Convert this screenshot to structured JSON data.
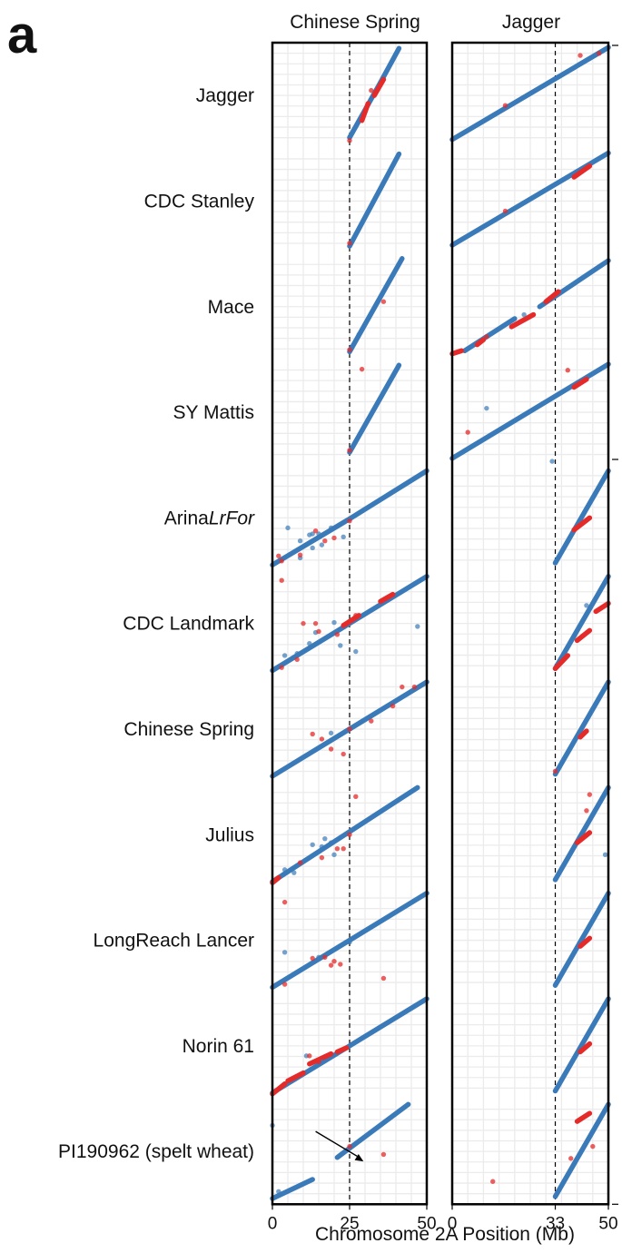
{
  "figure": {
    "panel_label": "a",
    "x_axis_title": "Chromosome 2A Position (Mb)"
  },
  "colors": {
    "blue": "#3a7ab8",
    "red": "#e52a2a",
    "grid": "#ebebeb",
    "frame": "#000000"
  },
  "chart_data": {
    "type": "scatter",
    "title": "",
    "xlabel": "Chromosome 2A Position (Mb)",
    "ylabel": "",
    "references": [
      {
        "name": "Chinese Spring",
        "xlim": [
          0,
          50
        ],
        "ticks": [
          0,
          25,
          50
        ],
        "dashed_line": 25
      },
      {
        "name": "Jagger",
        "xlim": [
          0,
          50
        ],
        "ticks": [
          0,
          33,
          50
        ],
        "dashed_line": 33
      }
    ],
    "rows": [
      {
        "name": "Jagger",
        "name_plain": "Jagger",
        "name_italic": "",
        "panels": [
          {
            "segments": [
              [
                25,
                0.08,
                35,
                0.63
              ],
              [
                35,
                0.63,
                41,
                0.97
              ]
            ],
            "red_segments": [
              [
                29,
                0.25,
                31,
                0.42
              ],
              [
                33,
                0.5,
                36,
                0.66
              ]
            ],
            "blue_points": [],
            "red_points": [
              [
                25,
                0.05
              ],
              [
                32,
                0.55
              ]
            ]
          },
          {
            "segments": [
              [
                0,
                0.06,
                50,
                0.98
              ]
            ],
            "red_segments": [],
            "blue_points": [],
            "red_points": [
              [
                17,
                0.4
              ],
              [
                41,
                0.9
              ],
              [
                47,
                0.92
              ]
            ]
          }
        ]
      },
      {
        "name": "CDC Stanley",
        "name_plain": "CDC Stanley",
        "name_italic": "",
        "panels": [
          {
            "segments": [
              [
                25,
                0.05,
                41,
                0.97
              ]
            ],
            "red_segments": [],
            "blue_points": [],
            "red_points": [
              [
                25,
                0.08
              ]
            ]
          },
          {
            "segments": [
              [
                0,
                0.06,
                50,
                0.98
              ]
            ],
            "red_segments": [
              [
                39,
                0.74,
                44,
                0.85
              ]
            ],
            "blue_points": [],
            "red_points": [
              [
                17,
                0.4
              ]
            ]
          }
        ]
      },
      {
        "name": "Mace",
        "name_plain": "Mace",
        "name_italic": "",
        "panels": [
          {
            "segments": [
              [
                25,
                0.05,
                42,
                0.98
              ]
            ],
            "red_segments": [],
            "blue_points": [
              [
                28,
                0.22
              ]
            ],
            "red_points": [
              [
                25,
                0.07
              ],
              [
                36,
                0.55
              ]
            ]
          },
          {
            "segments": [
              [
                4,
                0.06,
                20,
                0.38
              ],
              [
                28,
                0.5,
                50,
                0.96
              ]
            ],
            "red_segments": [
              [
                0,
                0.03,
                3,
                0.06
              ],
              [
                8,
                0.12,
                10,
                0.17
              ],
              [
                19,
                0.3,
                26,
                0.42
              ],
              [
                30,
                0.55,
                34,
                0.65
              ]
            ],
            "blue_points": [
              [
                23,
                0.42
              ]
            ],
            "red_points": [
              [
                11,
                0.2
              ]
            ]
          }
        ]
      },
      {
        "name": "SY Mattis",
        "name_plain": "SY Mattis",
        "name_italic": "",
        "panels": [
          {
            "segments": [
              [
                25,
                0.1,
                41,
                0.97
              ]
            ],
            "red_segments": [],
            "blue_points": [],
            "red_points": [
              [
                25,
                0.12
              ],
              [
                29,
                0.93
              ]
            ]
          },
          {
            "segments": [
              [
                0,
                0.04,
                50,
                0.98
              ]
            ],
            "red_segments": [
              [
                39,
                0.75,
                43,
                0.83
              ]
            ],
            "blue_points": [
              [
                11,
                0.54
              ],
              [
                32,
                0.01
              ]
            ],
            "red_points": [
              [
                37,
                0.92
              ],
              [
                5,
                0.3
              ]
            ]
          }
        ]
      },
      {
        "name": "ArinaLrFor",
        "name_plain": "Arina",
        "name_italic": "LrFor",
        "panels": [
          {
            "segments": [
              [
                0,
                0.03,
                25,
                0.49
              ],
              [
                25,
                0.49,
                50,
                0.97
              ]
            ],
            "red_segments": [],
            "blue_points": [
              [
                5,
                0.4
              ],
              [
                9,
                0.27
              ],
              [
                12,
                0.33
              ],
              [
                13,
                0.34
              ],
              [
                15,
                0.34
              ],
              [
                16,
                0.23
              ],
              [
                19,
                0.4
              ],
              [
                23,
                0.31
              ],
              [
                13,
                0.2
              ],
              [
                9,
                0.1
              ]
            ],
            "red_points": [
              [
                3,
                0.07
              ],
              [
                9,
                0.13
              ],
              [
                17,
                0.27
              ],
              [
                14,
                0.37
              ],
              [
                20,
                0.3
              ],
              [
                25,
                0.47
              ],
              [
                2,
                0.12
              ]
            ]
          },
          {
            "segments": [
              [
                33,
                0.05,
                50,
                0.97
              ]
            ],
            "red_segments": [
              [
                39,
                0.38,
                44,
                0.5
              ]
            ],
            "blue_points": [],
            "red_points": []
          }
        ]
      },
      {
        "name": "CDC Landmark",
        "name_plain": "CDC Landmark",
        "name_italic": "",
        "panels": [
          {
            "segments": [
              [
                0,
                0.03,
                50,
                0.97
              ]
            ],
            "red_segments": [
              [
                23,
                0.48,
                28,
                0.58
              ],
              [
                35,
                0.72,
                39,
                0.79
              ]
            ],
            "blue_points": [
              [
                4,
                0.18
              ],
              [
                8,
                0.2
              ],
              [
                12,
                0.3
              ],
              [
                14,
                0.41
              ],
              [
                20,
                0.51
              ],
              [
                22,
                0.28
              ],
              [
                47,
                0.47
              ],
              [
                27,
                0.22
              ]
            ],
            "red_points": [
              [
                3,
                0.93
              ],
              [
                10,
                0.5
              ],
              [
                14,
                0.5
              ],
              [
                15,
                0.42
              ],
              [
                21,
                0.39
              ],
              [
                3,
                0.06
              ],
              [
                8,
                0.14
              ],
              [
                27,
                0.58
              ]
            ]
          },
          {
            "segments": [
              [
                33,
                0.05,
                50,
                0.97
              ]
            ],
            "red_segments": [
              [
                33,
                0.05,
                37,
                0.18
              ],
              [
                40,
                0.33,
                44,
                0.43
              ],
              [
                46,
                0.62,
                50,
                0.7
              ]
            ],
            "blue_points": [
              [
                43,
                0.68
              ]
            ],
            "red_points": []
          }
        ]
      },
      {
        "name": "Chinese Spring",
        "name_plain": "Chinese Spring",
        "name_italic": "",
        "panels": [
          {
            "segments": [
              [
                0,
                0.03,
                50,
                0.97
              ]
            ],
            "red_segments": [],
            "blue_points": [
              [
                19,
                0.46
              ]
            ],
            "red_points": [
              [
                13,
                0.45
              ],
              [
                16,
                0.4
              ],
              [
                19,
                0.3
              ],
              [
                23,
                0.25
              ],
              [
                25,
                0.5
              ],
              [
                32,
                0.58
              ],
              [
                39,
                0.73
              ],
              [
                42,
                0.92
              ],
              [
                46,
                0.92
              ]
            ]
          },
          {
            "segments": [
              [
                33,
                0.05,
                50,
                0.97
              ]
            ],
            "red_segments": [
              [
                41,
                0.42,
                43,
                0.48
              ]
            ],
            "blue_points": [],
            "red_points": [
              [
                33,
                0.08
              ]
            ]
          }
        ]
      },
      {
        "name": "Julius",
        "name_plain": "Julius",
        "name_italic": "",
        "panels": [
          {
            "segments": [
              [
                0,
                0.03,
                47,
                0.97
              ]
            ],
            "red_segments": [
              [
                0,
                0.02,
                2,
                0.07
              ]
            ],
            "blue_points": [
              [
                13,
                0.4
              ],
              [
                16,
                0.38
              ],
              [
                17,
                0.46
              ],
              [
                19,
                0.42
              ],
              [
                20,
                0.3
              ],
              [
                4,
                0.15
              ],
              [
                7,
                0.12
              ]
            ],
            "red_points": [
              [
                25,
                0.5
              ],
              [
                27,
                0.88
              ],
              [
                21,
                0.36
              ],
              [
                23,
                0.36
              ],
              [
                9,
                0.22
              ],
              [
                16,
                0.27
              ]
            ]
          },
          {
            "segments": [
              [
                33,
                0.05,
                50,
                0.97
              ]
            ],
            "red_segments": [
              [
                40,
                0.42,
                44,
                0.52
              ]
            ],
            "blue_points": [
              [
                49,
                0.3
              ]
            ],
            "red_points": [
              [
                44,
                0.9
              ],
              [
                43,
                0.74
              ]
            ]
          }
        ]
      },
      {
        "name": "LongReach Lancer",
        "name_plain": "LongReach Lancer",
        "name_italic": "",
        "panels": [
          {
            "segments": [
              [
                0,
                0.03,
                50,
                0.97
              ]
            ],
            "red_segments": [],
            "blue_points": [
              [
                4,
                0.38
              ],
              [
                8,
                0.18
              ],
              [
                15,
                0.33
              ],
              [
                25,
                0.48
              ]
            ],
            "red_points": [
              [
                4,
                0.88
              ],
              [
                13,
                0.32
              ],
              [
                17,
                0.33
              ],
              [
                20,
                0.29
              ],
              [
                22,
                0.26
              ],
              [
                19,
                0.25
              ],
              [
                36,
                0.12
              ],
              [
                4,
                0.06
              ]
            ]
          },
          {
            "segments": [
              [
                33,
                0.05,
                50,
                0.97
              ]
            ],
            "red_segments": [
              [
                41,
                0.44,
                44,
                0.52
              ]
            ],
            "blue_points": [],
            "red_points": []
          }
        ]
      },
      {
        "name": "Norin 61",
        "name_plain": "Norin 61",
        "name_italic": "",
        "panels": [
          {
            "segments": [
              [
                0,
                0.03,
                50,
                0.97
              ]
            ],
            "red_segments": [
              [
                0,
                0.02,
                4,
                0.12
              ],
              [
                5,
                0.15,
                10,
                0.23
              ],
              [
                12,
                0.32,
                19,
                0.42
              ],
              [
                21,
                0.44,
                24,
                0.48
              ]
            ],
            "blue_points": [
              [
                16,
                0.34
              ],
              [
                11,
                0.4
              ]
            ],
            "red_points": [
              [
                12,
                0.4
              ],
              [
                15,
                0.34
              ]
            ]
          },
          {
            "segments": [
              [
                33,
                0.05,
                50,
                0.97
              ]
            ],
            "red_segments": [
              [
                41,
                0.44,
                44,
                0.52
              ]
            ],
            "blue_points": [],
            "red_points": []
          }
        ]
      },
      {
        "name": "PI190962 (spelt wheat)",
        "name_plain": "PI190962 (spelt wheat)",
        "name_italic": "",
        "panels": [
          {
            "segments": [
              [
                0,
                0.03,
                13,
                0.22
              ],
              [
                21,
                0.44,
                44,
                0.97
              ]
            ],
            "red_segments": [],
            "blue_points": [
              [
                0,
                0.76
              ],
              [
                2,
                0.1
              ]
            ],
            "red_points": [
              [
                36,
                0.47
              ],
              [
                25,
                0.55
              ]
            ]
          },
          {
            "segments": [
              [
                33,
                0.05,
                50,
                0.97
              ]
            ],
            "red_segments": [
              [
                40,
                0.8,
                44,
                0.88
              ]
            ],
            "blue_points": [],
            "red_points": [
              [
                13,
                0.2
              ],
              [
                38,
                0.43
              ],
              [
                45,
                0.55
              ]
            ]
          }
        ]
      }
    ]
  }
}
